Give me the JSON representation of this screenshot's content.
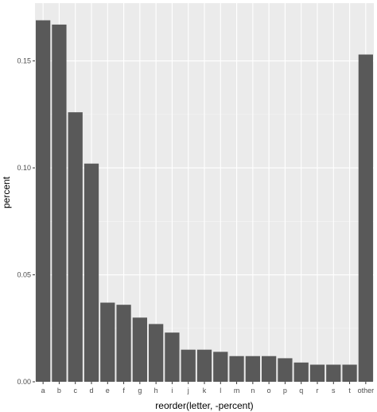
{
  "chart_data": {
    "type": "bar",
    "xlabel": "reorder(letter, -percent)",
    "ylabel": "percent",
    "categories": [
      "a",
      "b",
      "c",
      "d",
      "e",
      "f",
      "g",
      "h",
      "i",
      "j",
      "k",
      "l",
      "m",
      "n",
      "o",
      "p",
      "q",
      "r",
      "s",
      "t",
      "other"
    ],
    "values": [
      0.169,
      0.167,
      0.126,
      0.102,
      0.037,
      0.036,
      0.03,
      0.027,
      0.023,
      0.015,
      0.015,
      0.014,
      0.012,
      0.012,
      0.012,
      0.011,
      0.009,
      0.008,
      0.008,
      0.008,
      0.153
    ],
    "y_ticks": [
      {
        "value": 0.0,
        "label": "0.00"
      },
      {
        "value": 0.05,
        "label": "0.05"
      },
      {
        "value": 0.1,
        "label": "0.10"
      },
      {
        "value": 0.15,
        "label": "0.15"
      }
    ],
    "ylim": [
      0,
      0.177
    ],
    "grid": true,
    "legend": "none",
    "colors": {
      "panel_background": "#ebebeb",
      "grid_major": "#ffffff",
      "grid_minor": "#f5f5f5",
      "bar_fill": "#595959",
      "tick_text": "#4d4d4d",
      "axis_title": "#000000"
    }
  }
}
